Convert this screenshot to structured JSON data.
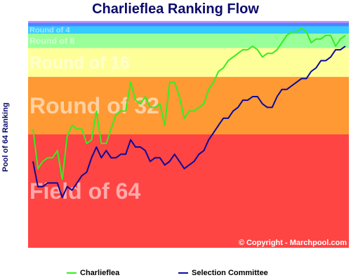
{
  "colors": {
    "title": "#0b0b6b",
    "charlieflea": "#33ee22",
    "selection": "#0a0a9a",
    "copyright": "#ffffff"
  },
  "chart_data": {
    "type": "line",
    "title": "Charlieflea Ranking Flow",
    "xlabel": "",
    "ylabel": "Pool of 64 Ranking",
    "ylim": [
      64,
      1
    ],
    "grid": false,
    "legend": "bottom",
    "copyright": "© Copyright - Marchpool.com",
    "bands": [
      {
        "label": "Field of 64",
        "from": 64,
        "to": 32.5,
        "color": "#ff4444"
      },
      {
        "label": "Round of 32",
        "from": 32.5,
        "to": 16.5,
        "color": "#ff9933"
      },
      {
        "label": "Round of 16",
        "from": 16.5,
        "to": 8.5,
        "color": "#ffff99"
      },
      {
        "label": "Round of 8",
        "from": 8.5,
        "to": 4.5,
        "color": "#99ff99"
      },
      {
        "label": "Round of 4",
        "from": 4.5,
        "to": 2.5,
        "color": "#33ccff"
      },
      {
        "label": "",
        "from": 2.5,
        "to": 1.5,
        "color": "#4488ff"
      },
      {
        "label": "",
        "from": 1.5,
        "to": 1,
        "color": "#cc88ff"
      }
    ],
    "series": [
      {
        "name": "Charlieflea",
        "values": [
          31,
          42,
          40,
          39,
          39,
          37,
          45,
          33,
          30,
          31,
          31,
          35,
          34,
          26,
          35,
          35,
          31,
          27,
          26,
          26,
          18,
          23,
          24,
          22,
          25,
          25,
          24,
          30,
          18,
          18,
          22,
          28,
          26,
          26,
          25,
          24,
          20,
          18,
          15,
          14,
          12,
          11,
          10,
          9,
          9,
          8,
          9,
          11,
          10,
          10,
          9,
          7,
          5,
          4,
          4,
          3,
          4,
          7,
          6,
          6,
          5,
          5,
          8,
          6,
          5
        ]
      },
      {
        "name": "Selection Committee",
        "values": [
          40,
          47,
          47,
          46,
          46,
          46,
          50,
          47,
          48,
          46,
          44,
          43,
          39,
          36,
          39,
          37,
          39,
          39,
          38,
          38,
          34,
          36,
          36,
          37,
          40,
          39,
          39,
          41,
          40,
          38,
          40,
          42,
          41,
          40,
          38,
          37,
          34,
          32,
          30,
          28,
          28,
          26,
          25,
          23,
          23,
          22,
          22,
          24,
          25,
          25,
          22,
          20,
          20,
          19,
          18,
          17,
          17,
          15,
          14,
          12,
          12,
          11,
          9,
          9,
          8
        ]
      }
    ]
  }
}
